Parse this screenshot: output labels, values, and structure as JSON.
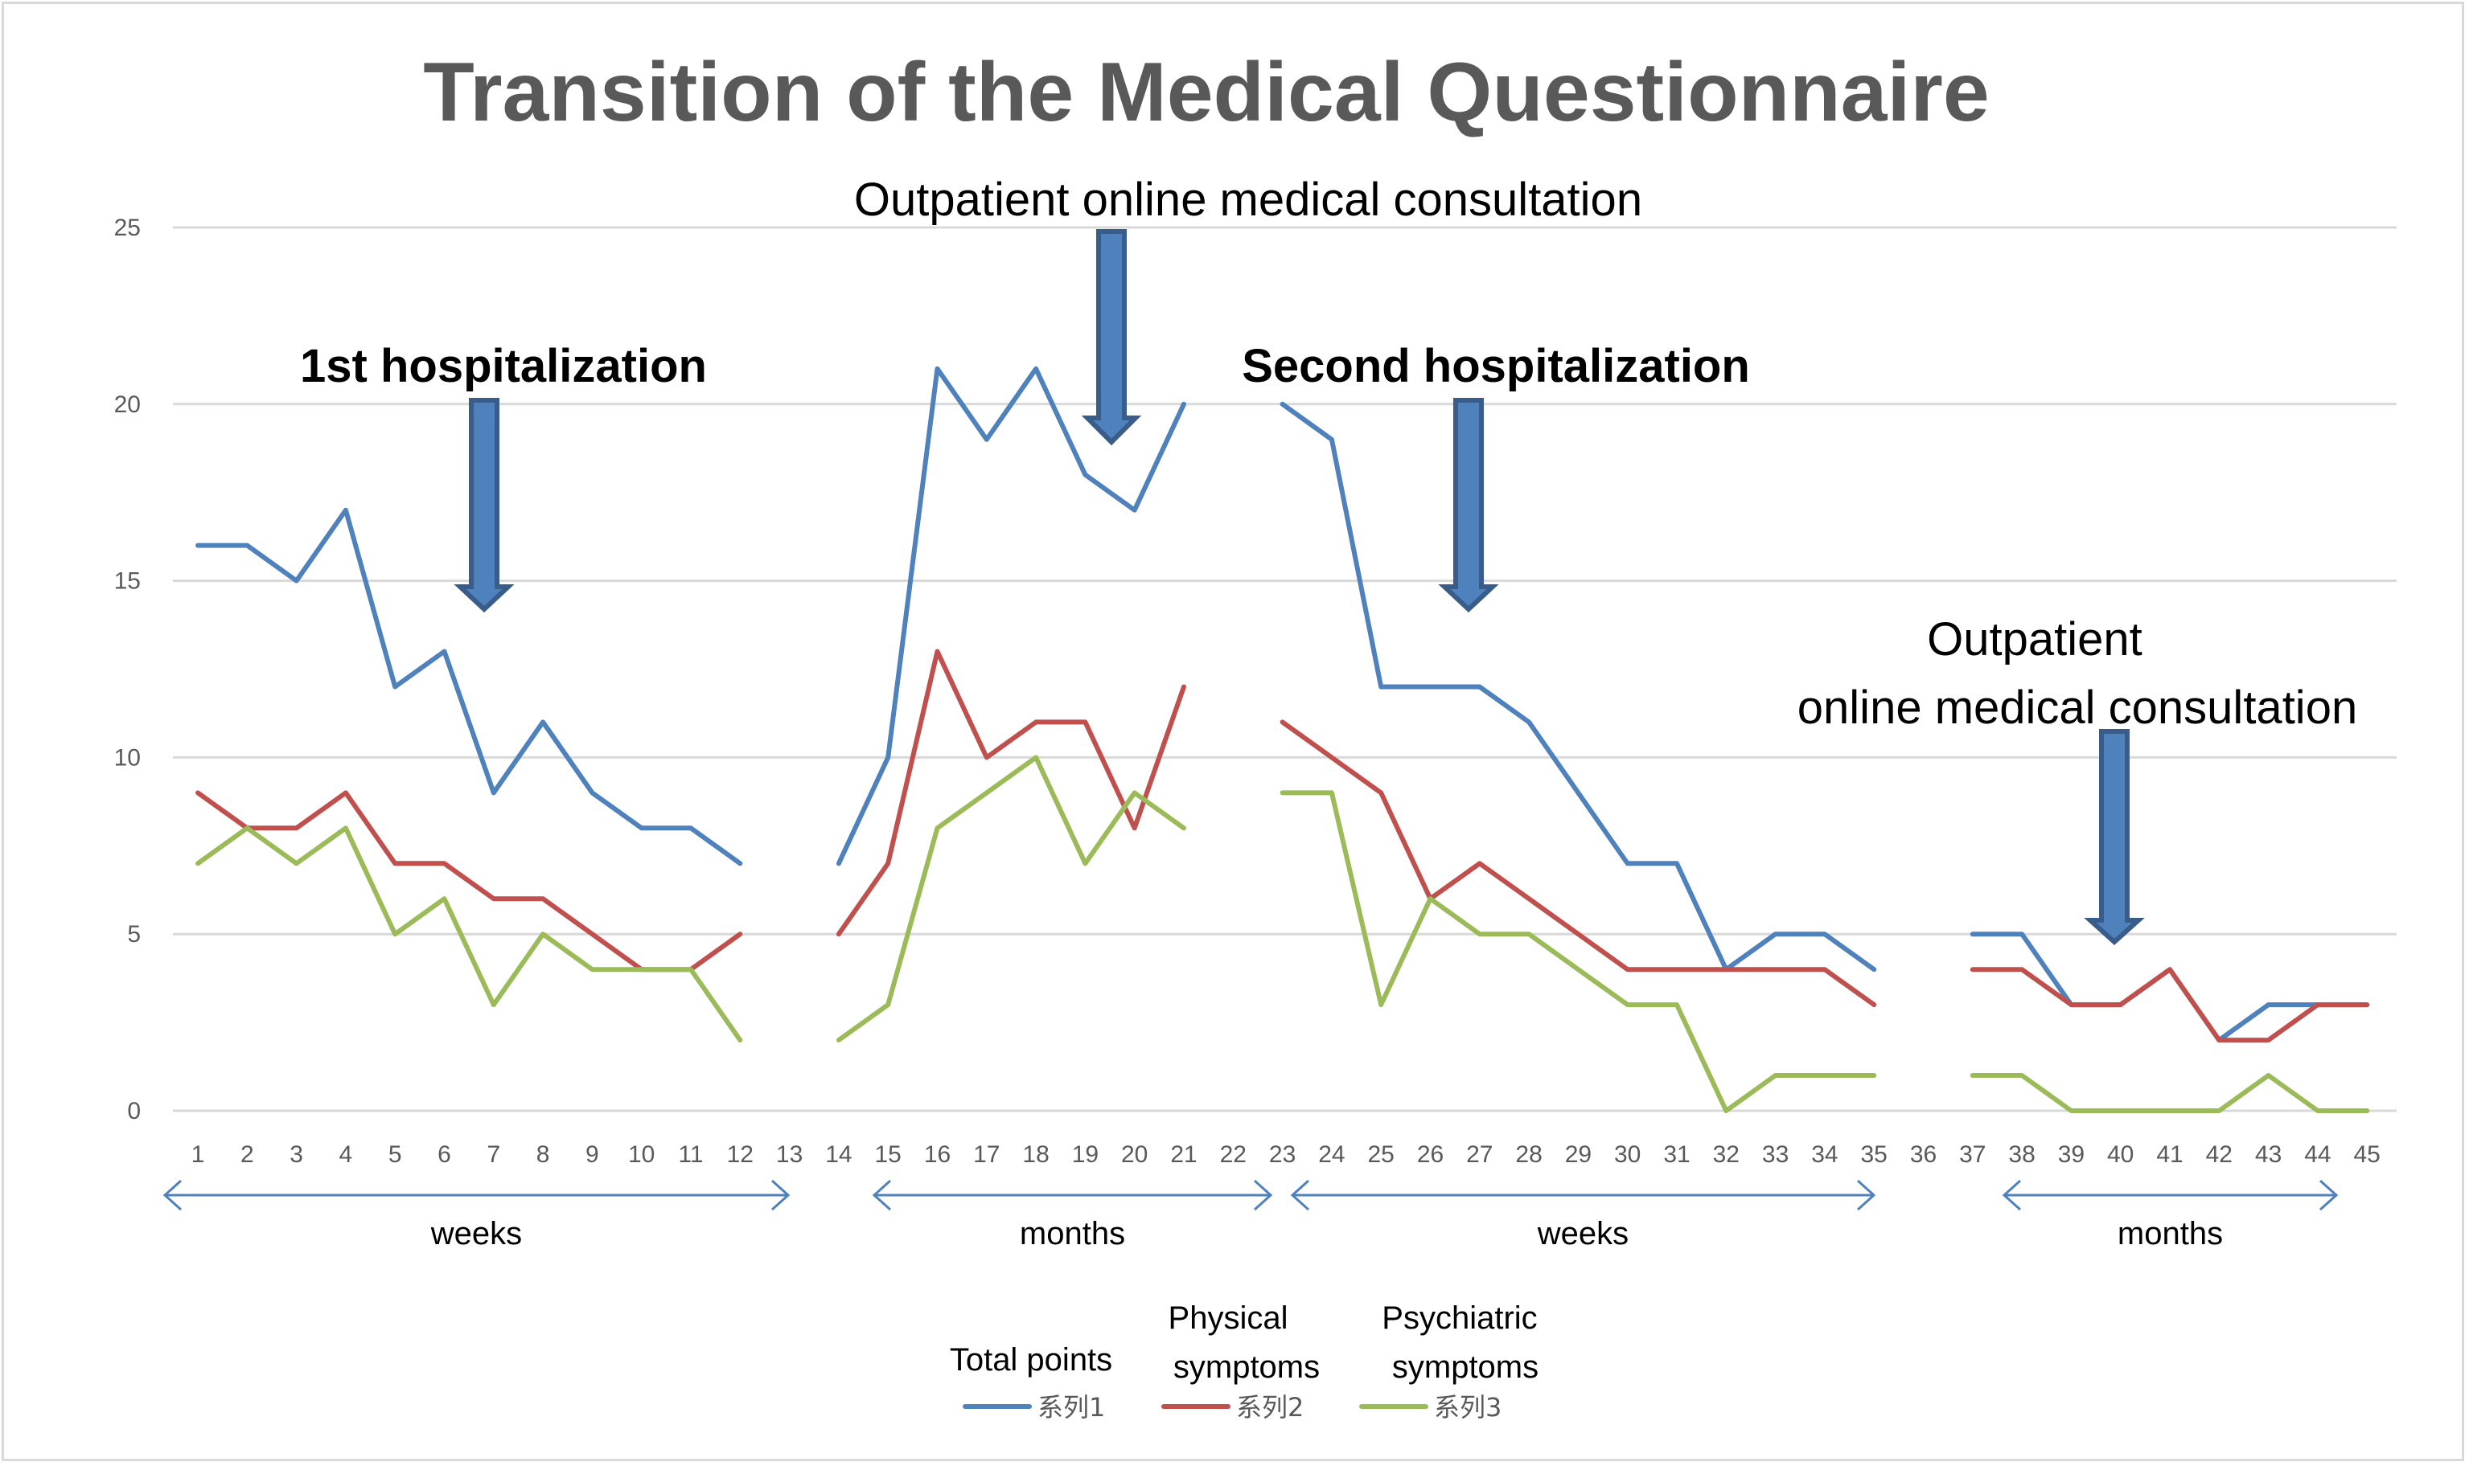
{
  "chart_data": {
    "type": "line",
    "title": "Transition of the Medical Questionnaire",
    "xlabel": "",
    "ylabel": "",
    "ylim": [
      0,
      25
    ],
    "yticks": [
      0,
      5,
      10,
      15,
      20,
      25
    ],
    "grid": true,
    "categories": [
      "1",
      "2",
      "3",
      "4",
      "5",
      "6",
      "7",
      "8",
      "9",
      "10",
      "11",
      "12",
      "13",
      "14",
      "15",
      "16",
      "17",
      "18",
      "19",
      "20",
      "21",
      "22",
      "23",
      "24",
      "25",
      "26",
      "27",
      "28",
      "29",
      "30",
      "31",
      "32",
      "33",
      "34",
      "35",
      "36",
      "37",
      "38",
      "39",
      "40",
      "41",
      "42",
      "43",
      "44",
      "45"
    ],
    "series": [
      {
        "name": "系列1",
        "label": "Total points",
        "color": "#4f81bd",
        "values": [
          16,
          16,
          15,
          17,
          12,
          13,
          9,
          11,
          9,
          8,
          8,
          7,
          null,
          7,
          10,
          21,
          19,
          21,
          18,
          17,
          20,
          null,
          20,
          19,
          12,
          12,
          12,
          11,
          9,
          7,
          7,
          4,
          5,
          5,
          4,
          null,
          5,
          5,
          3,
          3,
          4,
          2,
          3,
          3,
          3
        ]
      },
      {
        "name": "系列2",
        "label": "Physical symptoms",
        "color": "#c0504d",
        "values": [
          9,
          8,
          8,
          9,
          7,
          7,
          6,
          6,
          5,
          4,
          4,
          5,
          null,
          5,
          7,
          13,
          10,
          11,
          11,
          8,
          12,
          null,
          11,
          10,
          9,
          6,
          7,
          6,
          5,
          4,
          4,
          4,
          4,
          4,
          3,
          null,
          4,
          4,
          3,
          3,
          4,
          2,
          2,
          3,
          3
        ]
      },
      {
        "name": "系列3",
        "label": "Psychiatric symptoms",
        "color": "#9bbb59",
        "values": [
          7,
          8,
          7,
          8,
          5,
          6,
          3,
          5,
          4,
          4,
          4,
          2,
          null,
          2,
          3,
          8,
          9,
          10,
          7,
          9,
          8,
          null,
          9,
          9,
          3,
          6,
          5,
          5,
          4,
          3,
          3,
          0,
          1,
          1,
          1,
          null,
          1,
          1,
          0,
          0,
          0,
          0,
          1,
          0,
          0
        ]
      }
    ],
    "legend_position": "bottom",
    "legend": {
      "total_label": "Total points",
      "physical_label_1": "Physical",
      "physical_label_2": "symptoms",
      "psychiatric_label_1": "Psychiatric",
      "psychiatric_label_2": "symptoms"
    },
    "annotations": {
      "first_hosp": "1st hospitalization",
      "outpatient_1": "Outpatient online medical consultation",
      "second_hosp": "Second hospitalization",
      "outpatient_2_line1": "Outpatient",
      "outpatient_2_line2": "online medical consultation",
      "arrow_color": "#4f81bd",
      "arrow_border": "#385d8a"
    },
    "period_spans": [
      {
        "label": "weeks",
        "from": "1",
        "to": "13"
      },
      {
        "label": "months",
        "from": "14",
        "to": "22"
      },
      {
        "label": "weeks",
        "from": "23",
        "to": "35"
      },
      {
        "label": "months",
        "from": "38",
        "to": "44"
      }
    ]
  }
}
